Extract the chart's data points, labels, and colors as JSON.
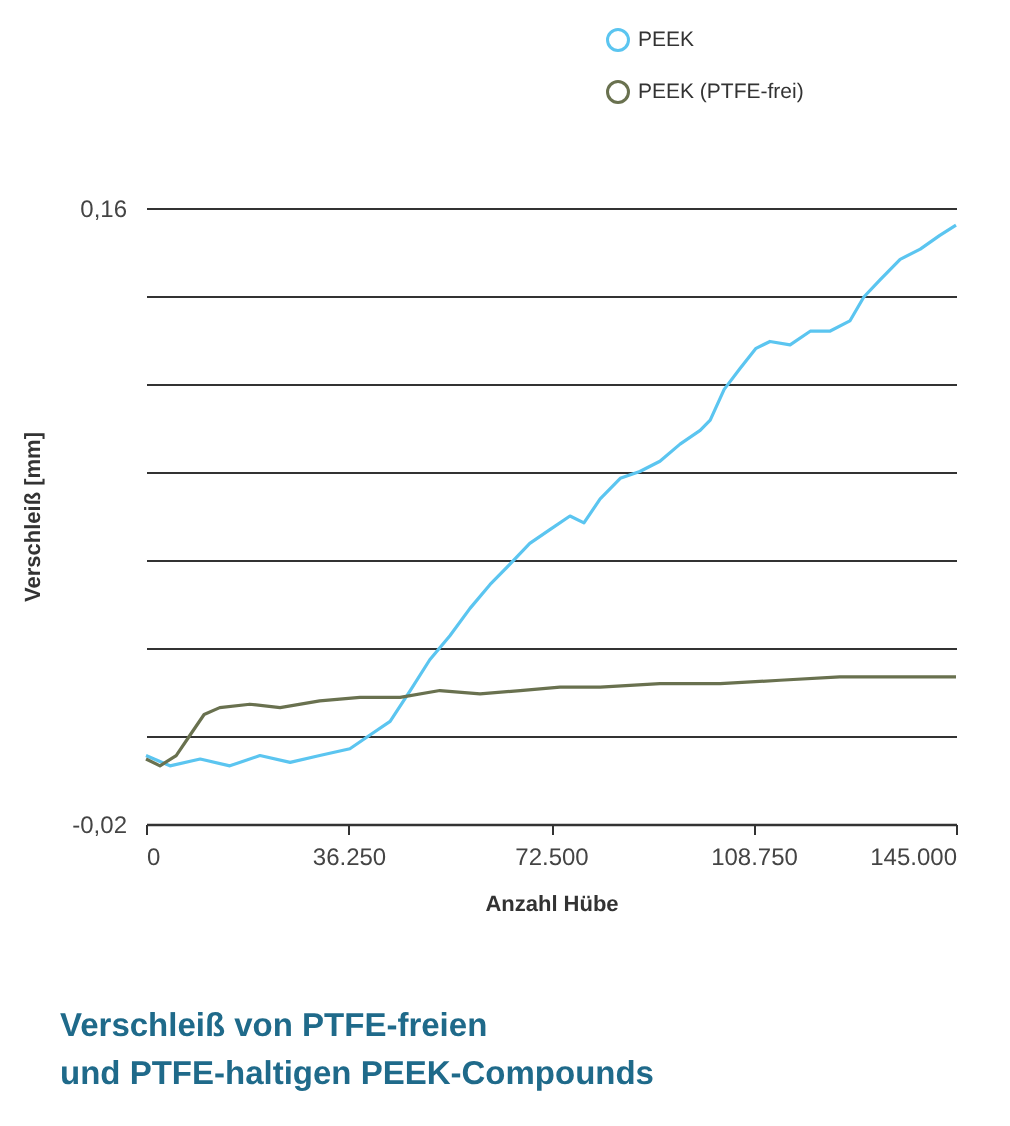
{
  "chart_data": {
    "type": "line",
    "title": "Verschleiß von PTFE-freien\nund PTFE-haltigen PEEK-Compounds",
    "xlabel": "Anzahl Hübe",
    "ylabel": "Verschleiß [mm]",
    "xlim": [
      0,
      145000
    ],
    "xticks": [
      {
        "value": 0,
        "label": "0"
      },
      {
        "value": 36250,
        "label": "36.250"
      },
      {
        "value": 72500,
        "label": "72.500"
      },
      {
        "value": 108750,
        "label": "108.750"
      },
      {
        "value": 145000,
        "label": "145.000"
      }
    ],
    "ylim": [
      -0.02,
      0.16
    ],
    "yticks": [
      {
        "value": -0.02,
        "label": "-0,02"
      },
      {
        "value": 0.0057,
        "label": null
      },
      {
        "value": 0.0314,
        "label": null
      },
      {
        "value": 0.0571,
        "label": null
      },
      {
        "value": 0.0829,
        "label": null
      },
      {
        "value": 0.1086,
        "label": null
      },
      {
        "value": 0.1343,
        "label": null
      },
      {
        "value": 0.16,
        "label": "0,16"
      }
    ],
    "grid": "y",
    "legend": "top right",
    "marker": "none",
    "line_style": "solid",
    "series": [
      {
        "name": "PEEK",
        "color": "#5bc5f0",
        "x": [
          0,
          4300,
          9700,
          15000,
          20400,
          25800,
          31100,
          36500,
          40100,
          43700,
          47300,
          50800,
          54400,
          58000,
          61600,
          65200,
          68700,
          72300,
          75900,
          78400,
          81300,
          84900,
          88400,
          92000,
          95600,
          99200,
          101000,
          103500,
          106300,
          109200,
          111700,
          115300,
          118900,
          122400,
          126000,
          128500,
          131400,
          135000,
          138600,
          142100,
          145000
        ],
        "values": [
          -0.0,
          -0.003,
          -0.001,
          -0.003,
          -0.0,
          -0.002,
          -0.0,
          0.002,
          0.006,
          0.01,
          0.019,
          0.028,
          0.035,
          0.043,
          0.05,
          0.056,
          0.062,
          0.066,
          0.07,
          0.068,
          0.075,
          0.081,
          0.083,
          0.086,
          0.091,
          0.095,
          0.098,
          0.107,
          0.113,
          0.119,
          0.121,
          0.12,
          0.124,
          0.124,
          0.127,
          0.134,
          0.139,
          0.145,
          0.148,
          0.152,
          0.155
        ]
      },
      {
        "name": "PEEK (PTFE-frei)",
        "color": "#69714f",
        "x": [
          0,
          2500,
          5400,
          7900,
          10400,
          13200,
          18600,
          24000,
          31100,
          38300,
          45500,
          52600,
          59800,
          67000,
          74100,
          81300,
          92000,
          102800,
          113500,
          124200,
          135000,
          145000
        ],
        "values": [
          -0.001,
          -0.003,
          0.0,
          0.006,
          0.012,
          0.014,
          0.015,
          0.014,
          0.016,
          0.017,
          0.017,
          0.019,
          0.018,
          0.019,
          0.02,
          0.02,
          0.021,
          0.021,
          0.022,
          0.023,
          0.023,
          0.023
        ]
      }
    ]
  }
}
